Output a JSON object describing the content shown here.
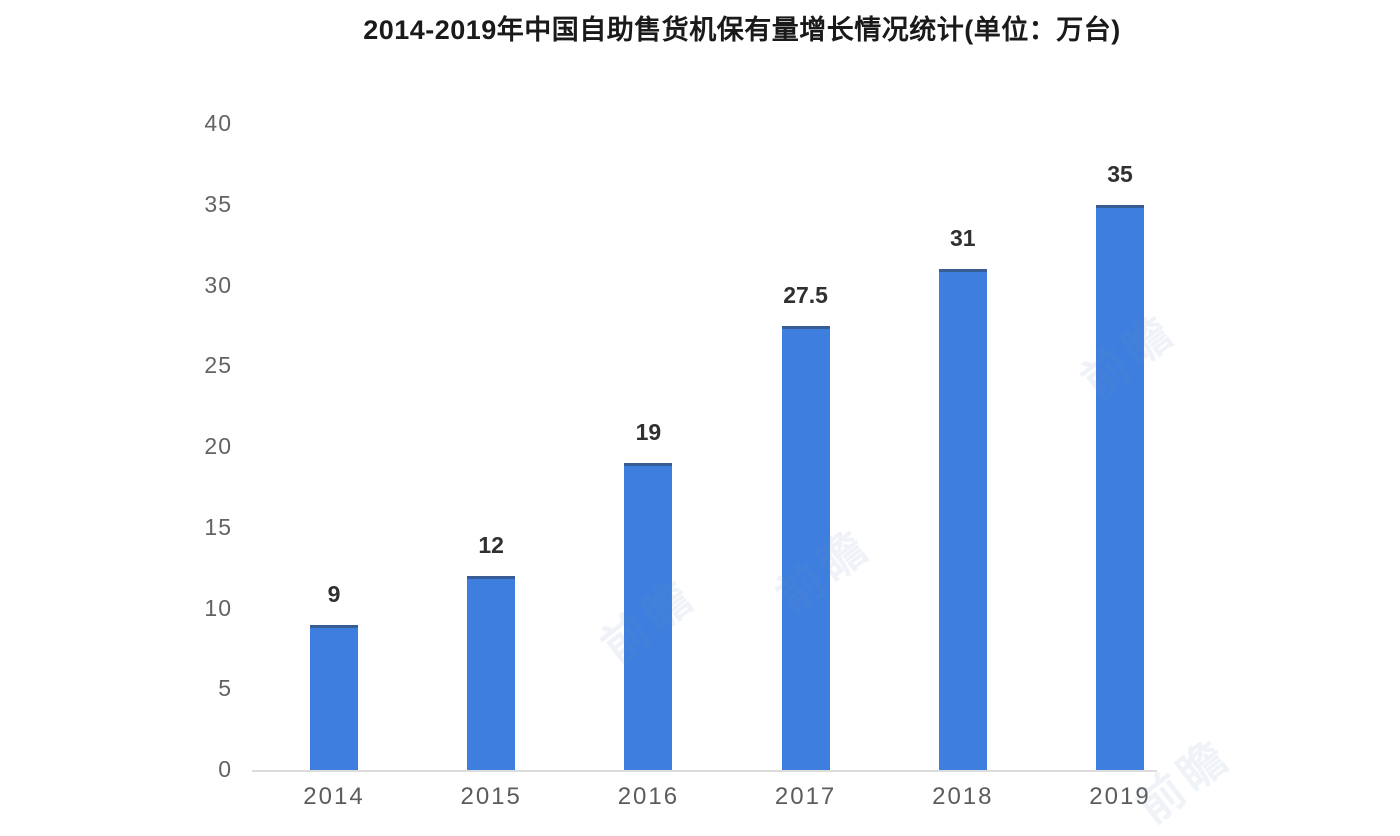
{
  "chart_data": {
    "type": "bar",
    "title": "2014-2019年中国自助售货机保有量增长情况统计(单位：万台)",
    "categories": [
      "2014",
      "2015",
      "2016",
      "2017",
      "2018",
      "2019"
    ],
    "values": [
      9,
      12,
      19,
      27.5,
      31,
      35
    ],
    "data_labels": [
      "9",
      "12",
      "19",
      "27.5",
      "31",
      "35"
    ],
    "xlabel": "",
    "ylabel": "",
    "ylim": [
      0,
      40
    ],
    "yticks": [
      0,
      5,
      10,
      15,
      20,
      25,
      30,
      35,
      40
    ],
    "grid": false,
    "legend": "none",
    "bar_color": "#3e7ede",
    "axis_line_color": "#dcdcdc",
    "tick_label_color": "#636363",
    "data_label_color": "#303030",
    "title_color": "#1a1a1a"
  },
  "watermark": {
    "text": "前瞻"
  }
}
